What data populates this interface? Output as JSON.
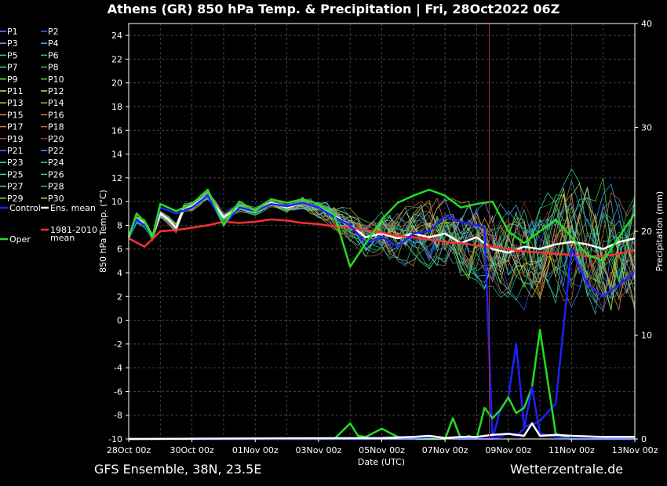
{
  "chart_data": {
    "type": "line",
    "title": "Athens  (GR)  850 hPa Temp. & Precipitation | Fri, 28Oct2022 06Z",
    "xlabel": "Date (UTC)",
    "ylabel": "850 hPa Temp. (°C)",
    "y2label": "Precipitation (mm)",
    "x_ticks": [
      "28Oct 00z",
      "30Oct 00z",
      "01Nov 00z",
      "03Nov 00z",
      "05Nov 00z",
      "07Nov 00z",
      "09Nov 00z",
      "11Nov 00z",
      "13Nov 00z"
    ],
    "x_range_days": [
      0,
      16
    ],
    "ylim": [
      -10,
      25
    ],
    "y_ticks": [
      -10,
      -8,
      -6,
      -4,
      -2,
      0,
      2,
      4,
      6,
      8,
      10,
      12,
      14,
      16,
      18,
      20,
      22,
      24
    ],
    "y2lim": [
      0,
      40
    ],
    "y2_ticks": [
      0,
      10,
      20,
      30,
      40
    ],
    "grid": true,
    "legend_placement": "left",
    "legend": [
      {
        "name": "P1",
        "color": "#5b8cff"
      },
      {
        "name": "P2",
        "color": "#2f6fff"
      },
      {
        "name": "P3",
        "color": "#6fa8ff"
      },
      {
        "name": "P4",
        "color": "#3ab0ff"
      },
      {
        "name": "P5",
        "color": "#3fc8c8"
      },
      {
        "name": "P6",
        "color": "#2ecf8a"
      },
      {
        "name": "P7",
        "color": "#3adf9a"
      },
      {
        "name": "P8",
        "color": "#2fbf5f"
      },
      {
        "name": "P9",
        "color": "#4fe04f"
      },
      {
        "name": "P10",
        "color": "#37d437"
      },
      {
        "name": "P11",
        "color": "#d8e060"
      },
      {
        "name": "P12",
        "color": "#e8d050"
      },
      {
        "name": "P13",
        "color": "#e0b84a"
      },
      {
        "name": "P14",
        "color": "#e0a040"
      },
      {
        "name": "P15",
        "color": "#d89060"
      },
      {
        "name": "P16",
        "color": "#c8804a"
      },
      {
        "name": "P17",
        "color": "#d87850"
      },
      {
        "name": "P18",
        "color": "#d06840"
      },
      {
        "name": "P19",
        "color": "#c05040"
      },
      {
        "name": "P20",
        "color": "#a83030"
      },
      {
        "name": "P21",
        "color": "#4c7fff"
      },
      {
        "name": "P22",
        "color": "#3c9cff"
      },
      {
        "name": "P23",
        "color": "#5cc0e0"
      },
      {
        "name": "P24",
        "color": "#3cb0c0"
      },
      {
        "name": "P25",
        "color": "#3ce0b0"
      },
      {
        "name": "P26",
        "color": "#30d0a0"
      },
      {
        "name": "P27",
        "color": "#40e080"
      },
      {
        "name": "P28",
        "color": "#30c060"
      },
      {
        "name": "P29",
        "color": "#80e040"
      },
      {
        "name": "P30",
        "color": "#c8d040"
      },
      {
        "name": "Control",
        "color": "#2020ff"
      },
      {
        "name": "Ens. mean",
        "color": "#ffffff"
      },
      {
        "name": "1981-2010 mean",
        "color": "#ff3030"
      },
      {
        "name": "Oper",
        "color": "#22dd22"
      }
    ],
    "series": [
      {
        "name": "Ens. mean",
        "color": "#ffffff",
        "x": [
          0,
          0.25,
          0.5,
          0.75,
          1,
          1.25,
          1.5,
          1.75,
          2,
          2.5,
          3,
          3.5,
          4,
          4.5,
          5,
          5.5,
          6,
          6.5,
          7,
          7.5,
          8,
          8.5,
          9,
          9.5,
          10,
          10.5,
          11,
          11.5,
          12,
          12.5,
          13,
          13.5,
          14,
          14.5,
          15,
          15.5,
          16
        ],
        "y": [
          7.0,
          8.5,
          8.2,
          7.0,
          9.0,
          8.5,
          7.8,
          9.5,
          9.6,
          10.5,
          8.7,
          9.5,
          9.2,
          9.9,
          9.5,
          9.9,
          9.5,
          8.8,
          8.0,
          7.0,
          7.3,
          6.9,
          7.3,
          7.0,
          7.3,
          6.5,
          7.0,
          6.0,
          5.7,
          6.2,
          6.0,
          6.4,
          6.6,
          6.4,
          6.0,
          6.6,
          6.9
        ]
      },
      {
        "name": "1981-2010 mean",
        "color": "#ff3030",
        "x": [
          0,
          0.5,
          1,
          1.5,
          2,
          2.5,
          3,
          3.5,
          4,
          4.5,
          5,
          5.5,
          6,
          6.5,
          7,
          7.5,
          8,
          8.5,
          9,
          9.5,
          10,
          10.5,
          11,
          11.5,
          12,
          12.5,
          13,
          13.5,
          14,
          14.5,
          15,
          15.5,
          16
        ],
        "y": [
          6.9,
          6.2,
          7.5,
          7.6,
          7.8,
          8.0,
          8.3,
          8.2,
          8.3,
          8.5,
          8.4,
          8.2,
          8.1,
          7.9,
          7.8,
          7.6,
          7.4,
          7.1,
          7.0,
          6.8,
          6.6,
          6.5,
          6.3,
          6.2,
          6.0,
          5.8,
          5.7,
          5.6,
          5.5,
          5.4,
          5.4,
          5.6,
          5.9
        ]
      },
      {
        "name": "Control",
        "color": "#2020ff",
        "x": [
          0,
          0.25,
          0.5,
          0.75,
          1,
          1.5,
          2,
          2.5,
          3,
          3.5,
          4,
          4.5,
          5,
          5.5,
          6,
          6.5,
          7,
          7.5,
          8,
          8.5,
          9,
          9.5,
          10,
          10.5,
          11,
          11.25,
          11.5,
          11.75,
          12,
          12.25,
          12.5,
          13,
          13.5,
          14,
          14.5,
          15,
          15.5,
          16
        ],
        "y": [
          7.0,
          8.5,
          8.0,
          7.0,
          9.5,
          9.0,
          9.5,
          10.5,
          8.0,
          9.5,
          9.2,
          9.8,
          9.6,
          9.9,
          9.5,
          8.7,
          8.0,
          6.5,
          7.0,
          6.2,
          7.3,
          7.5,
          8.8,
          8.3,
          8.0,
          7.8,
          -10.0,
          -7.5,
          -6.5,
          -2.0,
          -9.0,
          -8.5,
          -7.0,
          6.0,
          3.0,
          2.0,
          3.0,
          4.0
        ]
      },
      {
        "name": "Oper",
        "color": "#22dd22",
        "x": [
          0,
          0.25,
          0.5,
          0.75,
          1,
          1.5,
          2,
          2.5,
          3,
          3.5,
          4,
          4.5,
          5,
          5.5,
          6,
          6.5,
          7,
          7.5,
          8,
          8.5,
          9,
          9.5,
          10,
          10.5,
          11,
          11.5,
          12,
          12.5,
          13,
          13.5,
          14,
          14.5,
          15,
          15.5,
          16
        ],
        "y": [
          7.0,
          9.0,
          8.3,
          7.0,
          9.8,
          9.2,
          9.8,
          11.0,
          8.0,
          10.0,
          9.2,
          10.2,
          9.9,
          10.2,
          9.8,
          8.9,
          4.5,
          6.5,
          8.5,
          9.9,
          10.5,
          11.0,
          10.5,
          9.5,
          9.8,
          10.0,
          7.5,
          6.5,
          7.5,
          8.5,
          7.0,
          5.5,
          5.0,
          7.0,
          9.0
        ]
      },
      {
        "name": "Oper precipitation",
        "color": "#22dd22",
        "axis": "y2",
        "x": [
          0,
          6.5,
          7,
          7.25,
          7.5,
          8,
          8.5,
          9,
          9.5,
          10,
          10.25,
          10.5,
          10.75,
          11,
          11.25,
          11.5,
          11.75,
          12,
          12.25,
          12.5,
          12.75,
          13,
          13.5,
          14,
          16
        ],
        "y": [
          0,
          0,
          1.5,
          0.3,
          0.2,
          1.0,
          0.2,
          0,
          0,
          0,
          2.0,
          0,
          0.3,
          0,
          3.0,
          2.0,
          2.8,
          4.0,
          2.5,
          3.0,
          5.0,
          10.5,
          0.5,
          0,
          0
        ]
      },
      {
        "name": "Control precipitation",
        "color": "#2020ff",
        "axis": "y2",
        "x": [
          0,
          9,
          9.5,
          10,
          10.5,
          11,
          11.5,
          12,
          12.25,
          12.5,
          12.75,
          13,
          13.5,
          14,
          15,
          16
        ],
        "y": [
          0,
          0,
          0.2,
          0.1,
          0,
          0,
          0,
          0.5,
          0.3,
          1.0,
          5.0,
          0.5,
          0.2,
          0,
          0,
          0
        ]
      },
      {
        "name": "Ens. mean precipitation",
        "color": "#ffffff",
        "axis": "y2",
        "x": [
          0,
          8,
          9,
          9.5,
          10,
          10.5,
          11,
          11.5,
          12,
          12.5,
          12.75,
          13,
          13.5,
          14,
          15,
          16
        ],
        "y": [
          0,
          0.1,
          0.2,
          0.3,
          0.1,
          0.2,
          0.2,
          0.4,
          0.5,
          0.3,
          1.5,
          0.3,
          0.4,
          0.3,
          0.2,
          0.2
        ]
      }
    ]
  },
  "footer": {
    "left": "GFS Ensemble, 38N, 23.5E",
    "right": "Wetterzentrale.de"
  }
}
